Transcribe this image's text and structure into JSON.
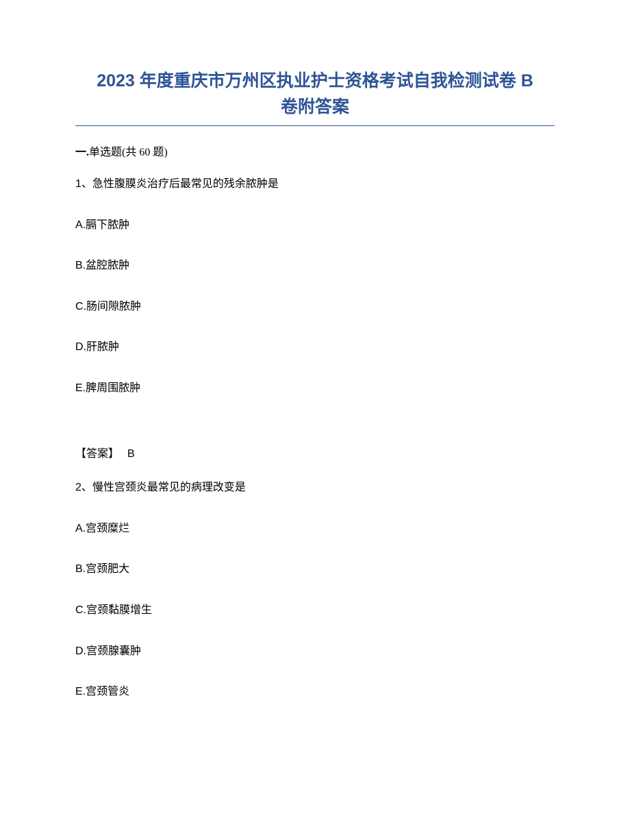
{
  "title": {
    "line1": "2023 年度重庆市万州区执业护士资格考试自我检测试卷 B",
    "line2": "卷附答案",
    "color": "#2e5496",
    "fontsize": 25
  },
  "section": {
    "prefix": "一.",
    "label": "单选题",
    "suffix": "(共 60 题)"
  },
  "questions": [
    {
      "number": "1、",
      "stem": "急性腹膜炎治疗后最常见的残余脓肿是",
      "options": [
        {
          "letter": "A.",
          "text": "膈下脓肿"
        },
        {
          "letter": "B.",
          "text": "盆腔脓肿"
        },
        {
          "letter": "C.",
          "text": "肠间隙脓肿"
        },
        {
          "letter": "D.",
          "text": "肝脓肿"
        },
        {
          "letter": "E.",
          "text": "脾周围脓肿"
        }
      ],
      "answer": {
        "label": "【答案】",
        "value": "B"
      }
    },
    {
      "number": "2、",
      "stem": "慢性宫颈炎最常见的病理改变是",
      "options": [
        {
          "letter": "A.",
          "text": "宫颈糜烂"
        },
        {
          "letter": "B.",
          "text": "宫颈肥大"
        },
        {
          "letter": "C.",
          "text": "宫颈黏膜增生"
        },
        {
          "letter": "D.",
          "text": "宫颈腺囊肿"
        },
        {
          "letter": "E.",
          "text": "宫颈管炎"
        }
      ]
    }
  ]
}
